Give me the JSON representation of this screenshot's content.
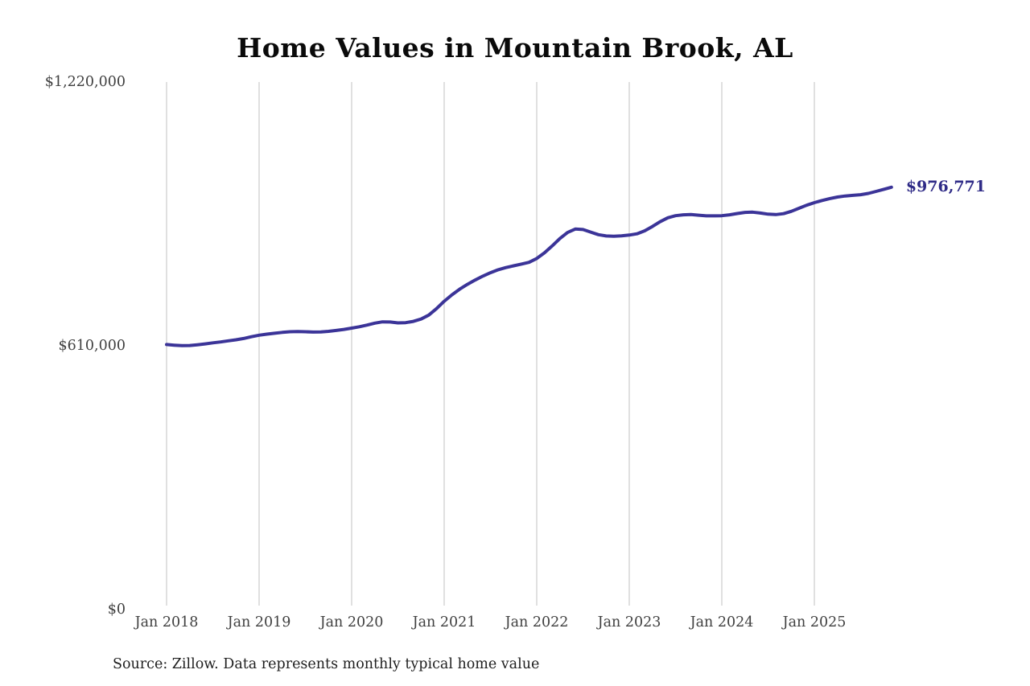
{
  "chart": {
    "title": "Home Values in Mountain Brook, AL",
    "end_label": "$976,771",
    "source_note": "Source: Zillow. Data represents monthly typical home value",
    "colors": {
      "line": "#3b3498",
      "end_label": "#2f2b87",
      "gridline": "#cccccc",
      "tick_text": "#404040",
      "title_text": "#0a0a0a",
      "source_text": "#1f1f1f"
    }
  },
  "chart_data": {
    "type": "line",
    "title": "Home Values in Mountain Brook, AL",
    "xlabel": "",
    "ylabel": "",
    "legend": "none",
    "grid": "vertical-yearly",
    "ylim": [
      0,
      1220000
    ],
    "y_ticks": [
      {
        "label": "$0",
        "value": 0
      },
      {
        "label": "$610,000",
        "value": 610000
      },
      {
        "label": "$1,220,000",
        "value": 1220000
      }
    ],
    "x_tick_labels": [
      "Jan 2018",
      "Jan 2019",
      "Jan 2020",
      "Jan 2021",
      "Jan 2022",
      "Jan 2023",
      "Jan 2024",
      "Jan 2025"
    ],
    "series": [
      {
        "name": "Monthly typical home value",
        "start_month": "2018-01",
        "end_month": "2025-11",
        "frequency": "monthly",
        "end_value": 976771,
        "end_value_label": "$976,771",
        "values": [
          613000,
          611500,
          610300,
          610800,
          612500,
          614500,
          616800,
          619000,
          621500,
          624000,
          627000,
          631000,
          634500,
          637000,
          639000,
          641000,
          642500,
          643000,
          642500,
          641800,
          642000,
          643500,
          645500,
          648000,
          651000,
          654000,
          658000,
          662500,
          665500,
          665000,
          663000,
          663500,
          666500,
          672000,
          681000,
          696000,
          713000,
          728000,
          741000,
          752000,
          762000,
          771000,
          779000,
          786000,
          791000,
          795000,
          799000,
          803000,
          812000,
          825000,
          841000,
          858000,
          872000,
          880000,
          879000,
          873000,
          867000,
          864000,
          863500,
          864500,
          866000,
          869000,
          876000,
          886000,
          897000,
          906000,
          911000,
          913000,
          913500,
          912000,
          910500,
          910500,
          911000,
          913000,
          916000,
          918500,
          919000,
          917000,
          914500,
          913500,
          915500,
          921000,
          928000,
          935000,
          941000,
          946000,
          950500,
          954000,
          956500,
          958000,
          959500,
          962500,
          967000,
          972000,
          976771
        ]
      }
    ],
    "source": "Source: Zillow. Data represents monthly typical home value"
  }
}
